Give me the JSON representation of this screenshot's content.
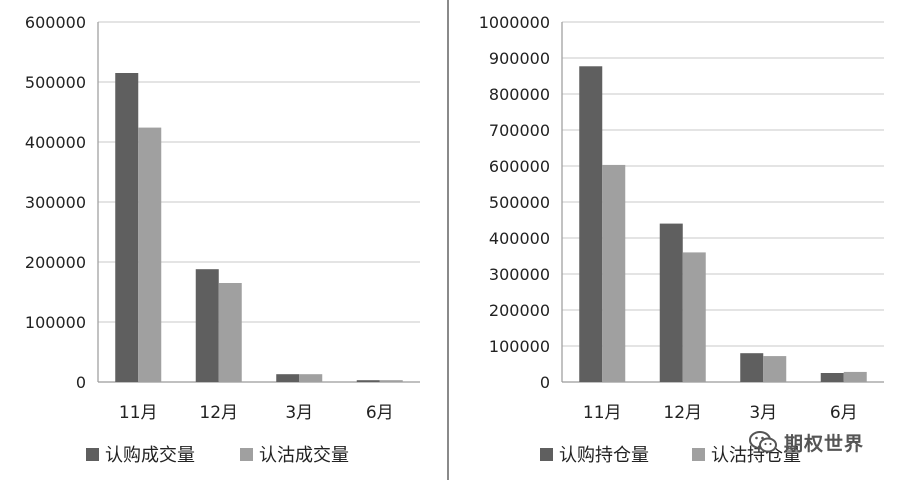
{
  "chart_data": [
    {
      "type": "bar",
      "categories": [
        "11月",
        "12月",
        "3月",
        "6月"
      ],
      "series": [
        {
          "name": "认购成交量",
          "values": [
            515000,
            188000,
            13000,
            3000
          ]
        },
        {
          "name": "认沽成交量",
          "values": [
            424000,
            165000,
            13000,
            3000
          ]
        }
      ],
      "ylim": [
        0,
        600000
      ],
      "yticks": [
        "0",
        "100000",
        "200000",
        "300000",
        "400000",
        "500000",
        "600000"
      ],
      "grid": true,
      "legend": "bottom",
      "colors": [
        "#5f5f5f",
        "#a0a0a0"
      ]
    },
    {
      "type": "bar",
      "categories": [
        "11月",
        "12月",
        "3月",
        "6月"
      ],
      "series": [
        {
          "name": "认购持仓量",
          "values": [
            877000,
            440000,
            80000,
            25000
          ]
        },
        {
          "name": "认沽持仓量",
          "values": [
            603000,
            360000,
            72000,
            28000
          ]
        }
      ],
      "ylim": [
        0,
        1000000
      ],
      "yticks": [
        "0",
        "100000",
        "200000",
        "300000",
        "400000",
        "500000",
        "600000",
        "700000",
        "800000",
        "900000",
        "1000000"
      ],
      "grid": true,
      "legend": "bottom",
      "colors": [
        "#5f5f5f",
        "#a0a0a0"
      ]
    }
  ],
  "watermark": {
    "text": "期权世界",
    "icon": "wechat-icon"
  }
}
